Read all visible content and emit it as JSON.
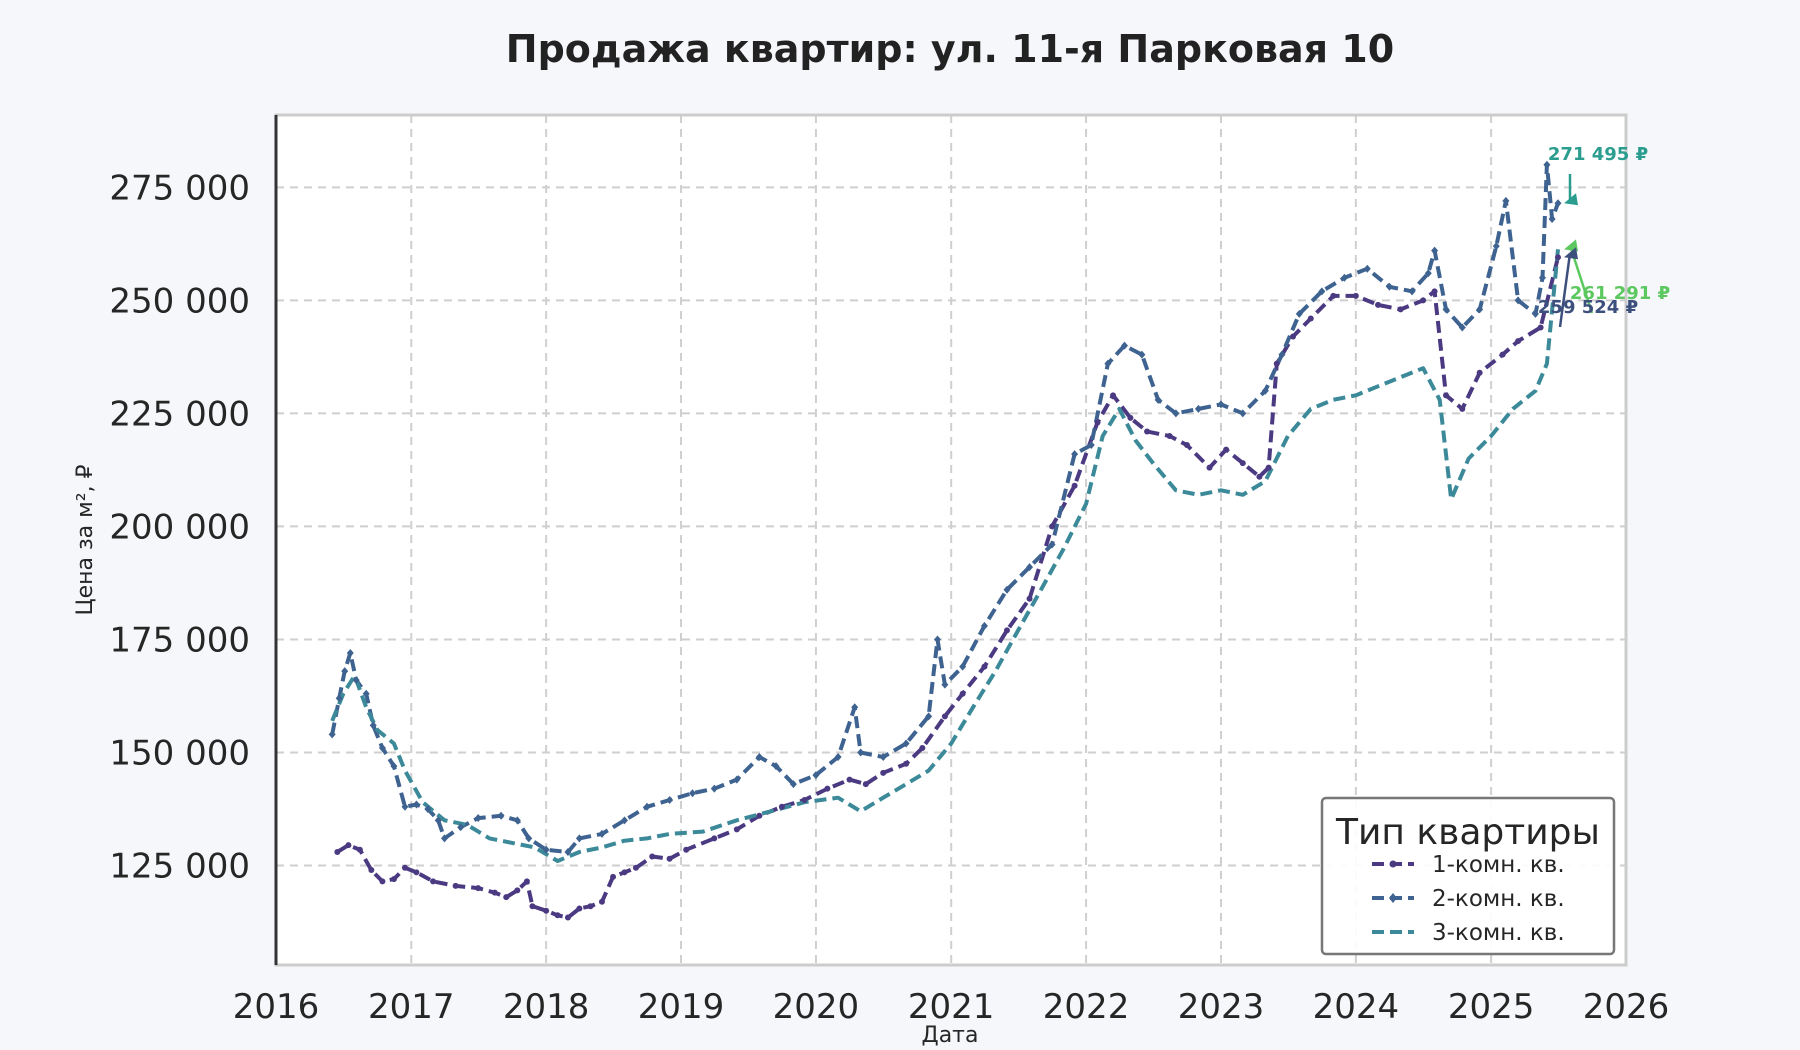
{
  "chart_data": {
    "type": "line",
    "title": "Продажа квартир: ул. 11-я Парковая 10",
    "xlabel": "Дата",
    "ylabel": "Цена за м², ₽",
    "xlim": [
      "2016-01-01",
      "2026-01-01"
    ],
    "ylim": [
      103000,
      291000
    ],
    "x_ticks": [
      "2016",
      "2017",
      "2018",
      "2019",
      "2020",
      "2021",
      "2022",
      "2023",
      "2024",
      "2025",
      "2026"
    ],
    "y_ticks": [
      125000,
      150000,
      175000,
      200000,
      225000,
      250000,
      275000
    ],
    "y_tick_labels": [
      "125 000",
      "150 000",
      "175 000",
      "200 000",
      "225 000",
      "250 000",
      "275 000"
    ],
    "grid": true,
    "legend": {
      "title": "Тип квартиры",
      "placement": "bottom-right"
    },
    "series": [
      {
        "name": "1-комн. кв.",
        "color": "#4b3a82",
        "line_style": "dashed",
        "marker": "dot",
        "points": [
          [
            "2016-06-15",
            128000
          ],
          [
            "2016-07-15",
            129500
          ],
          [
            "2016-08-15",
            128500
          ],
          [
            "2016-09-15",
            124000
          ],
          [
            "2016-10-15",
            121500
          ],
          [
            "2016-11-15",
            122000
          ],
          [
            "2016-12-15",
            124500
          ],
          [
            "2017-01-15",
            123500
          ],
          [
            "2017-03-01",
            121500
          ],
          [
            "2017-05-01",
            120500
          ],
          [
            "2017-07-01",
            120000
          ],
          [
            "2017-08-15",
            119000
          ],
          [
            "2017-09-15",
            118000
          ],
          [
            "2017-10-15",
            119500
          ],
          [
            "2017-11-10",
            121500
          ],
          [
            "2017-11-25",
            116000
          ],
          [
            "2018-01-01",
            115000
          ],
          [
            "2018-02-01",
            114000
          ],
          [
            "2018-03-01",
            113500
          ],
          [
            "2018-04-01",
            115500
          ],
          [
            "2018-05-01",
            116000
          ],
          [
            "2018-06-01",
            117000
          ],
          [
            "2018-07-01",
            122500
          ],
          [
            "2018-08-01",
            123500
          ],
          [
            "2018-09-01",
            124500
          ],
          [
            "2018-10-15",
            127000
          ],
          [
            "2018-12-01",
            126500
          ],
          [
            "2019-01-15",
            128500
          ],
          [
            "2019-04-01",
            131000
          ],
          [
            "2019-06-01",
            133000
          ],
          [
            "2019-08-01",
            136000
          ],
          [
            "2019-10-01",
            138000
          ],
          [
            "2019-12-01",
            139500
          ],
          [
            "2020-02-01",
            142000
          ],
          [
            "2020-04-01",
            144000
          ],
          [
            "2020-05-15",
            143000
          ],
          [
            "2020-07-01",
            145500
          ],
          [
            "2020-09-01",
            147500
          ],
          [
            "2020-10-15",
            151000
          ],
          [
            "2020-12-15",
            158000
          ],
          [
            "2021-02-01",
            163000
          ],
          [
            "2021-04-01",
            169000
          ],
          [
            "2021-06-01",
            177000
          ],
          [
            "2021-08-01",
            184000
          ],
          [
            "2021-10-01",
            200000
          ],
          [
            "2021-12-01",
            209000
          ],
          [
            "2022-02-01",
            223000
          ],
          [
            "2022-03-15",
            229000
          ],
          [
            "2022-05-01",
            224000
          ],
          [
            "2022-06-15",
            221000
          ],
          [
            "2022-08-15",
            220000
          ],
          [
            "2022-10-01",
            218000
          ],
          [
            "2022-12-01",
            213000
          ],
          [
            "2023-01-15",
            217000
          ],
          [
            "2023-03-01",
            214000
          ],
          [
            "2023-04-15",
            211000
          ],
          [
            "2023-05-10",
            213000
          ],
          [
            "2023-06-01",
            236000
          ],
          [
            "2023-07-15",
            242000
          ],
          [
            "2023-09-01",
            246000
          ],
          [
            "2023-11-01",
            251000
          ],
          [
            "2024-01-01",
            251000
          ],
          [
            "2024-03-01",
            249000
          ],
          [
            "2024-05-01",
            248000
          ],
          [
            "2024-07-01",
            250000
          ],
          [
            "2024-08-01",
            252000
          ],
          [
            "2024-09-01",
            229000
          ],
          [
            "2024-10-15",
            226000
          ],
          [
            "2024-12-01",
            234000
          ],
          [
            "2025-02-01",
            238000
          ],
          [
            "2025-03-15",
            241000
          ],
          [
            "2025-05-15",
            244000
          ],
          [
            "2025-07-01",
            259524
          ]
        ]
      },
      {
        "name": "2-комн. кв.",
        "color": "#3f6390",
        "line_style": "dashed",
        "marker": "diamond",
        "points": [
          [
            "2016-06-01",
            154000
          ],
          [
            "2016-06-20",
            162000
          ],
          [
            "2016-07-05",
            168000
          ],
          [
            "2016-07-20",
            172000
          ],
          [
            "2016-08-05",
            166000
          ],
          [
            "2016-09-01",
            163000
          ],
          [
            "2016-09-20",
            156000
          ],
          [
            "2016-10-15",
            151000
          ],
          [
            "2016-11-15",
            147000
          ],
          [
            "2016-12-15",
            138000
          ],
          [
            "2017-01-15",
            138500
          ],
          [
            "2017-02-15",
            137500
          ],
          [
            "2017-03-15",
            135000
          ],
          [
            "2017-04-01",
            131000
          ],
          [
            "2017-05-15",
            133500
          ],
          [
            "2017-07-01",
            135500
          ],
          [
            "2017-09-01",
            136000
          ],
          [
            "2017-10-15",
            135000
          ],
          [
            "2017-11-15",
            131000
          ],
          [
            "2018-01-01",
            128500
          ],
          [
            "2018-03-01",
            128000
          ],
          [
            "2018-04-01",
            131000
          ],
          [
            "2018-06-01",
            132000
          ],
          [
            "2018-08-01",
            135000
          ],
          [
            "2018-10-01",
            138000
          ],
          [
            "2018-12-01",
            139500
          ],
          [
            "2019-02-01",
            141000
          ],
          [
            "2019-04-01",
            142000
          ],
          [
            "2019-06-01",
            144000
          ],
          [
            "2019-08-01",
            149000
          ],
          [
            "2019-09-15",
            147000
          ],
          [
            "2019-11-01",
            143000
          ],
          [
            "2020-01-01",
            145000
          ],
          [
            "2020-03-01",
            149000
          ],
          [
            "2020-04-15",
            160000
          ],
          [
            "2020-05-01",
            150000
          ],
          [
            "2020-07-01",
            149000
          ],
          [
            "2020-09-01",
            152000
          ],
          [
            "2020-11-01",
            158000
          ],
          [
            "2020-11-25",
            175000
          ],
          [
            "2020-12-15",
            165000
          ],
          [
            "2021-02-01",
            169000
          ],
          [
            "2021-04-01",
            178000
          ],
          [
            "2021-06-01",
            186000
          ],
          [
            "2021-08-01",
            191000
          ],
          [
            "2021-10-01",
            196000
          ],
          [
            "2021-12-01",
            216000
          ],
          [
            "2022-01-15",
            218000
          ],
          [
            "2022-03-01",
            236000
          ],
          [
            "2022-04-15",
            240000
          ],
          [
            "2022-06-01",
            238000
          ],
          [
            "2022-07-15",
            228000
          ],
          [
            "2022-09-01",
            225000
          ],
          [
            "2022-11-01",
            226000
          ],
          [
            "2023-01-01",
            227000
          ],
          [
            "2023-03-01",
            225000
          ],
          [
            "2023-05-01",
            230000
          ],
          [
            "2023-06-15",
            238000
          ],
          [
            "2023-08-01",
            247000
          ],
          [
            "2023-10-01",
            252000
          ],
          [
            "2023-12-01",
            255000
          ],
          [
            "2024-02-01",
            257000
          ],
          [
            "2024-04-01",
            253000
          ],
          [
            "2024-06-01",
            252000
          ],
          [
            "2024-07-15",
            256000
          ],
          [
            "2024-08-01",
            261000
          ],
          [
            "2024-09-01",
            248000
          ],
          [
            "2024-10-15",
            244000
          ],
          [
            "2024-12-01",
            248000
          ],
          [
            "2025-01-15",
            262000
          ],
          [
            "2025-02-10",
            272000
          ],
          [
            "2025-03-15",
            250000
          ],
          [
            "2025-05-01",
            247000
          ],
          [
            "2025-05-20",
            255000
          ],
          [
            "2025-06-01",
            280000
          ],
          [
            "2025-06-15",
            268000
          ],
          [
            "2025-07-01",
            271495
          ]
        ]
      },
      {
        "name": "3-комн. кв.",
        "color": "#3c8a99",
        "line_style": "dashed",
        "marker": "none",
        "points": [
          [
            "2016-06-01",
            157000
          ],
          [
            "2016-07-01",
            163000
          ],
          [
            "2016-08-01",
            167000
          ],
          [
            "2016-09-01",
            160000
          ],
          [
            "2016-10-01",
            155000
          ],
          [
            "2016-11-15",
            152000
          ],
          [
            "2016-12-15",
            146000
          ],
          [
            "2017-02-01",
            139000
          ],
          [
            "2017-04-01",
            135000
          ],
          [
            "2017-06-01",
            134000
          ],
          [
            "2017-08-01",
            131000
          ],
          [
            "2017-10-01",
            130000
          ],
          [
            "2017-12-01",
            129000
          ],
          [
            "2018-02-01",
            126000
          ],
          [
            "2018-04-01",
            128000
          ],
          [
            "2018-06-01",
            129000
          ],
          [
            "2018-08-01",
            130500
          ],
          [
            "2018-10-01",
            131000
          ],
          [
            "2018-12-01",
            132000
          ],
          [
            "2019-03-01",
            132500
          ],
          [
            "2019-06-01",
            135000
          ],
          [
            "2019-09-01",
            137000
          ],
          [
            "2019-12-01",
            139000
          ],
          [
            "2020-03-01",
            140000
          ],
          [
            "2020-05-01",
            137000
          ],
          [
            "2020-07-01",
            140000
          ],
          [
            "2020-09-01",
            143000
          ],
          [
            "2020-11-01",
            146000
          ],
          [
            "2021-01-01",
            152000
          ],
          [
            "2021-03-01",
            160000
          ],
          [
            "2021-05-01",
            168000
          ],
          [
            "2021-07-01",
            177000
          ],
          [
            "2021-09-01",
            186000
          ],
          [
            "2021-11-01",
            195000
          ],
          [
            "2022-01-01",
            205000
          ],
          [
            "2022-02-15",
            220000
          ],
          [
            "2022-04-01",
            226000
          ],
          [
            "2022-05-15",
            219000
          ],
          [
            "2022-07-01",
            214000
          ],
          [
            "2022-09-01",
            208000
          ],
          [
            "2022-11-01",
            207000
          ],
          [
            "2023-01-01",
            208000
          ],
          [
            "2023-03-01",
            207000
          ],
          [
            "2023-05-01",
            210000
          ],
          [
            "2023-07-01",
            220000
          ],
          [
            "2023-09-01",
            226000
          ],
          [
            "2023-11-01",
            228000
          ],
          [
            "2024-01-01",
            229000
          ],
          [
            "2024-03-01",
            231000
          ],
          [
            "2024-05-01",
            233000
          ],
          [
            "2024-07-01",
            235000
          ],
          [
            "2024-08-15",
            228000
          ],
          [
            "2024-09-15",
            206000
          ],
          [
            "2024-11-01",
            215000
          ],
          [
            "2025-01-01",
            220000
          ],
          [
            "2025-03-01",
            226000
          ],
          [
            "2025-05-01",
            230000
          ],
          [
            "2025-06-01",
            236000
          ],
          [
            "2025-07-01",
            261291
          ]
        ]
      }
    ],
    "annotations": [
      {
        "text": "271 495 ₽",
        "series": "2-комн. кв.",
        "color": "#2a9d8f"
      },
      {
        "text": "261 291 ₽",
        "series": "3-комн. кв.",
        "color": "#5cc860"
      },
      {
        "text": "259 524 ₽",
        "series": "1-комн. кв.",
        "color": "#3d4f7d"
      }
    ]
  }
}
